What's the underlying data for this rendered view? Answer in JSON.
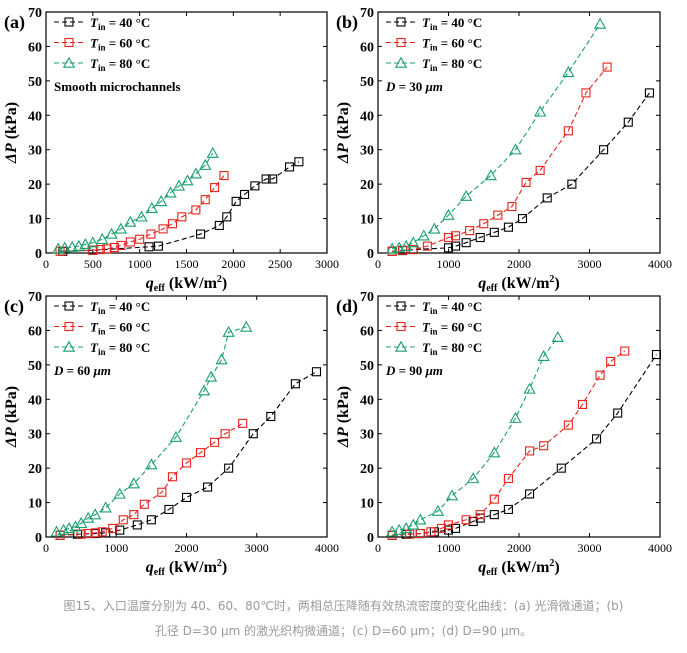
{
  "caption": {
    "line1": "图15、入口温度分别为 40、60、80℃时，两相总压降随有效热流密度的变化曲线：(a) 光滑微通道；(b)",
    "line2": "孔径 D=30 μm 的激光织构微通道；(c) D=60 μm；(d) D=90 μm。"
  },
  "colors": {
    "t40": "#000000",
    "t60": "#e8231e",
    "t80": "#19a06a"
  },
  "chart_data": [
    {
      "panel": "(a)",
      "type": "scatter",
      "ylabel": "ΔP (kPa)",
      "xlabel": "q_eff (kW/m²)",
      "xlim": [
        0,
        3000
      ],
      "ylim": [
        0,
        70
      ],
      "xticks": [
        "0",
        "500",
        "1000",
        "1500",
        "2000",
        "2500",
        "3000"
      ],
      "yticks": [
        "0",
        "10",
        "20",
        "30",
        "40",
        "50",
        "60",
        "70"
      ],
      "annotation": "Smooth microchannels",
      "series": [
        {
          "name": "T_in = 40 °C",
          "marker": "square",
          "x": [
            180,
            500,
            1100,
            1200,
            1650,
            1850,
            1930,
            2030,
            2120,
            2230,
            2350,
            2420,
            2600,
            2700
          ],
          "y": [
            0.5,
            0.8,
            1.8,
            2.0,
            5.5,
            8.0,
            10.5,
            15.0,
            17.0,
            19.5,
            21.5,
            21.5,
            25.0,
            26.5
          ]
        },
        {
          "name": "T_in = 60 °C",
          "marker": "square",
          "x": [
            150,
            500,
            580,
            650,
            730,
            800,
            900,
            1000,
            1120,
            1250,
            1350,
            1450,
            1600,
            1700,
            1800,
            1900
          ],
          "y": [
            0.5,
            0.8,
            1.0,
            1.2,
            1.6,
            2.2,
            3.2,
            4.0,
            5.5,
            7.0,
            8.5,
            10.5,
            12.5,
            15.5,
            19.0,
            22.5
          ]
        },
        {
          "name": "T_in = 80 °C",
          "marker": "triangle",
          "x": [
            130,
            200,
            280,
            350,
            420,
            500,
            600,
            700,
            800,
            900,
            1020,
            1130,
            1230,
            1330,
            1420,
            1510,
            1600,
            1700,
            1780
          ],
          "y": [
            1.2,
            1.5,
            1.7,
            2.0,
            2.5,
            3.0,
            4.0,
            5.5,
            7.0,
            9.0,
            10.5,
            13.0,
            15.0,
            17.5,
            19.5,
            21.0,
            23.0,
            25.5,
            29.0
          ]
        }
      ]
    },
    {
      "panel": "(b)",
      "type": "scatter",
      "ylabel": "ΔP (kPa)",
      "xlabel": "q_eff (kW/m²)",
      "xlim": [
        0,
        4000
      ],
      "ylim": [
        0,
        70
      ],
      "xticks": [
        "0",
        "1000",
        "2000",
        "3000",
        "4000"
      ],
      "yticks": [
        "0",
        "10",
        "20",
        "30",
        "40",
        "50",
        "60",
        "70"
      ],
      "annotation": "D = 30 μm",
      "series": [
        {
          "name": "T_in = 40 °C",
          "marker": "square",
          "x": [
            200,
            350,
            500,
            1000,
            1100,
            1250,
            1450,
            1650,
            1850,
            2050,
            2400,
            2750,
            3200,
            3550,
            3850
          ],
          "y": [
            0.5,
            0.7,
            1.0,
            1.5,
            2.0,
            3.0,
            4.5,
            6.0,
            7.5,
            10.0,
            16.0,
            20.0,
            30.0,
            38.0,
            46.5
          ]
        },
        {
          "name": "T_in = 60 °C",
          "marker": "square",
          "x": [
            200,
            350,
            500,
            700,
            1000,
            1100,
            1300,
            1500,
            1700,
            1900,
            2100,
            2300,
            2700,
            2950,
            3250
          ],
          "y": [
            0.5,
            0.8,
            1.0,
            2.0,
            4.5,
            5.0,
            6.5,
            8.5,
            11.0,
            13.5,
            20.5,
            24.0,
            35.5,
            46.5,
            54.0
          ]
        },
        {
          "name": "T_in = 80 °C",
          "marker": "triangle",
          "x": [
            200,
            300,
            400,
            500,
            650,
            800,
            1000,
            1250,
            1600,
            1950,
            2300,
            2700,
            3150
          ],
          "y": [
            1.2,
            1.5,
            2.0,
            3.0,
            5.0,
            7.0,
            11.0,
            16.5,
            22.5,
            30.0,
            41.0,
            52.5,
            66.5
          ]
        }
      ]
    },
    {
      "panel": "(c)",
      "type": "scatter",
      "ylabel": "ΔP (kPa)",
      "xlabel": "q_eff (kW/m²)",
      "xlim": [
        0,
        4000
      ],
      "ylim": [
        0,
        70
      ],
      "xticks": [
        "0",
        "1000",
        "2000",
        "3000",
        "4000"
      ],
      "yticks": [
        "0",
        "10",
        "20",
        "30",
        "40",
        "50",
        "60",
        "70"
      ],
      "annotation": "D = 60 μm",
      "series": [
        {
          "name": "T_in = 40 °C",
          "marker": "square",
          "x": [
            200,
            450,
            700,
            850,
            1050,
            1300,
            1500,
            1750,
            2000,
            2300,
            2600,
            2950,
            3200,
            3550,
            3850
          ],
          "y": [
            0.5,
            0.8,
            1.0,
            1.2,
            2.0,
            3.5,
            5.0,
            8.0,
            11.5,
            14.5,
            20.0,
            30.0,
            35.0,
            44.5,
            48.0
          ]
        },
        {
          "name": "T_in = 60 °C",
          "marker": "square",
          "x": [
            200,
            500,
            600,
            700,
            800,
            950,
            1100,
            1250,
            1400,
            1650,
            1800,
            2000,
            2200,
            2400,
            2550,
            2800
          ],
          "y": [
            0.5,
            0.8,
            1.0,
            1.2,
            1.5,
            2.5,
            5.0,
            6.5,
            9.5,
            13.0,
            17.5,
            21.5,
            24.5,
            27.5,
            30.0,
            33.0
          ]
        },
        {
          "name": "T_in = 80 °C",
          "marker": "triangle",
          "x": [
            150,
            250,
            330,
            420,
            500,
            600,
            700,
            850,
            1050,
            1250,
            1500,
            1850,
            2250,
            2350,
            2500,
            2600,
            2850
          ],
          "y": [
            1.5,
            2.0,
            2.5,
            3.0,
            4.0,
            5.5,
            6.5,
            8.5,
            12.5,
            15.5,
            21.0,
            29.0,
            42.5,
            46.5,
            51.5,
            59.5,
            61.0
          ]
        }
      ]
    },
    {
      "panel": "(d)",
      "type": "scatter",
      "ylabel": "ΔP (kPa)",
      "xlabel": "q_eff (kW/m²)",
      "xlim": [
        0,
        4000
      ],
      "ylim": [
        0,
        70
      ],
      "xticks": [
        "0",
        "1000",
        "2000",
        "3000",
        "4000"
      ],
      "yticks": [
        "0",
        "10",
        "20",
        "30",
        "40",
        "50",
        "60",
        "70"
      ],
      "annotation": "D = 90 μm",
      "series": [
        {
          "name": "T_in = 40 °C",
          "marker": "square",
          "x": [
            200,
            400,
            600,
            800,
            1000,
            1100,
            1350,
            1450,
            1650,
            1850,
            2150,
            2600,
            3100,
            3400,
            3950
          ],
          "y": [
            0.5,
            0.8,
            1.0,
            1.5,
            2.0,
            2.5,
            4.5,
            5.5,
            6.5,
            8.0,
            12.5,
            20.0,
            28.5,
            36.0,
            53.0
          ]
        },
        {
          "name": "T_in = 60 °C",
          "marker": "square",
          "x": [
            200,
            450,
            600,
            750,
            900,
            1000,
            1250,
            1450,
            1650,
            1850,
            2150,
            2350,
            2700,
            2900,
            3150,
            3300,
            3500
          ],
          "y": [
            0.5,
            0.8,
            1.0,
            1.5,
            2.5,
            3.5,
            5.0,
            6.5,
            11.0,
            17.0,
            25.0,
            26.5,
            32.5,
            38.5,
            47.0,
            51.0,
            54.0
          ]
        },
        {
          "name": "T_in = 80 °C",
          "marker": "triangle",
          "x": [
            200,
            300,
            400,
            500,
            600,
            850,
            1050,
            1350,
            1650,
            1950,
            2150,
            2350,
            2550
          ],
          "y": [
            1.5,
            2.0,
            2.5,
            3.5,
            5.0,
            7.5,
            12.0,
            17.0,
            24.5,
            34.5,
            43.0,
            52.5,
            58.0
          ]
        }
      ]
    }
  ]
}
